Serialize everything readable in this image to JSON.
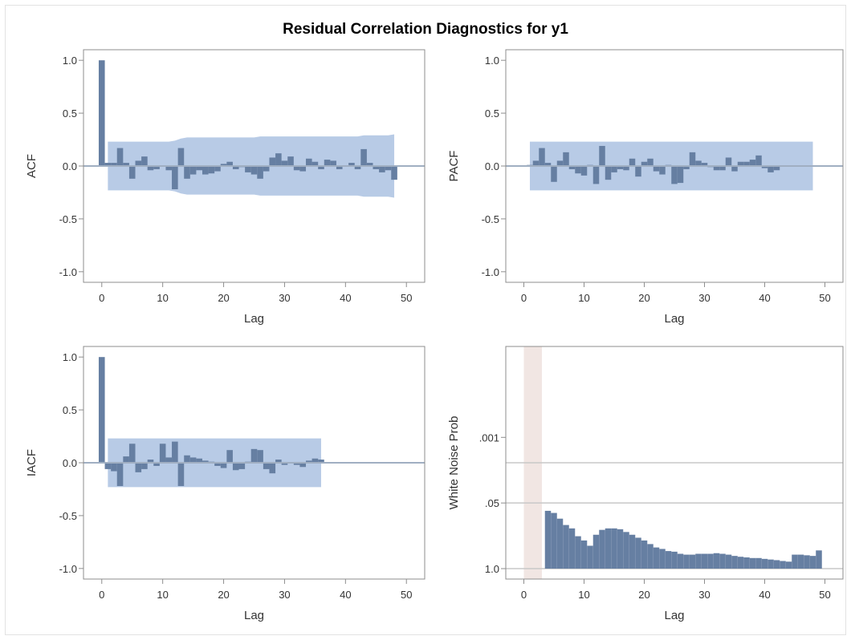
{
  "title": "Residual Correlation Diagnostics for y1",
  "colors": {
    "bar": "#667fa2",
    "band": "#b8cbe6",
    "axis": "#8e8e8e",
    "refline": "#a0afc2",
    "highlight": "#f1e6e3",
    "hline": "#c8c8c8"
  },
  "chart_data": [
    {
      "id": "acf",
      "type": "bar",
      "ylabel": "ACF",
      "xlabel": "Lag",
      "xlim": [
        -3,
        53
      ],
      "ylim": [
        -1.1,
        1.1
      ],
      "xticks": [
        "0",
        "10",
        "20",
        "30",
        "40",
        "50"
      ],
      "yticks": [
        "1.0",
        "0.5",
        "0.0",
        "-0.5",
        "-1.0"
      ],
      "lags": [
        0,
        1,
        2,
        3,
        4,
        5,
        6,
        7,
        8,
        9,
        10,
        11,
        12,
        13,
        14,
        15,
        16,
        17,
        18,
        19,
        20,
        21,
        22,
        23,
        24,
        25,
        26,
        27,
        28,
        29,
        30,
        31,
        32,
        33,
        34,
        35,
        36,
        37,
        38,
        39,
        40,
        41,
        42,
        43,
        44,
        45,
        46,
        47,
        48
      ],
      "values": [
        1.0,
        0.03,
        0.03,
        0.17,
        0.03,
        -0.12,
        0.05,
        0.09,
        -0.04,
        -0.03,
        0.0,
        -0.04,
        -0.22,
        0.17,
        -0.12,
        -0.08,
        -0.04,
        -0.08,
        -0.07,
        -0.05,
        0.02,
        0.04,
        -0.03,
        -0.01,
        -0.06,
        -0.08,
        -0.12,
        -0.05,
        0.08,
        0.12,
        0.05,
        0.09,
        -0.04,
        -0.05,
        0.07,
        0.04,
        -0.03,
        0.06,
        0.05,
        -0.03,
        0.0,
        0.03,
        -0.03,
        0.16,
        0.03,
        -0.03,
        -0.06,
        -0.04,
        -0.13
      ],
      "band_upper": [
        0.23,
        0.23,
        0.23,
        0.23,
        0.23,
        0.23,
        0.23,
        0.23,
        0.23,
        0.23,
        0.23,
        0.23,
        0.24,
        0.26,
        0.27,
        0.27,
        0.27,
        0.27,
        0.27,
        0.27,
        0.27,
        0.27,
        0.27,
        0.27,
        0.27,
        0.27,
        0.28,
        0.28,
        0.28,
        0.28,
        0.28,
        0.28,
        0.28,
        0.28,
        0.28,
        0.28,
        0.28,
        0.28,
        0.28,
        0.28,
        0.28,
        0.28,
        0.28,
        0.29,
        0.29,
        0.29,
        0.29,
        0.29,
        0.3
      ]
    },
    {
      "id": "pacf",
      "type": "bar",
      "ylabel": "PACF",
      "xlabel": "Lag",
      "xlim": [
        -3,
        53
      ],
      "ylim": [
        -1.1,
        1.1
      ],
      "xticks": [
        "0",
        "10",
        "20",
        "30",
        "40",
        "50"
      ],
      "yticks": [
        "1.0",
        "0.5",
        "0.0",
        "-0.5",
        "-1.0"
      ],
      "lags": [
        1,
        2,
        3,
        4,
        5,
        6,
        7,
        8,
        9,
        10,
        11,
        12,
        13,
        14,
        15,
        16,
        17,
        18,
        19,
        20,
        21,
        22,
        23,
        24,
        25,
        26,
        27,
        28,
        29,
        30,
        31,
        32,
        33,
        34,
        35,
        36,
        37,
        38,
        39,
        40,
        41,
        42,
        43,
        44,
        45,
        46,
        47,
        48
      ],
      "values": [
        0.01,
        0.05,
        0.17,
        0.03,
        -0.15,
        0.05,
        0.13,
        -0.03,
        -0.07,
        -0.09,
        0.01,
        -0.17,
        0.19,
        -0.13,
        -0.06,
        -0.03,
        -0.04,
        0.07,
        -0.1,
        0.04,
        0.07,
        -0.05,
        -0.08,
        0.01,
        -0.17,
        -0.16,
        -0.03,
        0.13,
        0.05,
        0.03,
        -0.01,
        -0.04,
        -0.04,
        0.08,
        -0.05,
        0.04,
        0.04,
        0.06,
        0.1,
        -0.02,
        -0.06,
        -0.04
      ],
      "band_upper": 0.23
    },
    {
      "id": "iacf",
      "type": "bar",
      "ylabel": "IACF",
      "xlabel": "Lag",
      "xlim": [
        -3,
        53
      ],
      "ylim": [
        -1.1,
        1.1
      ],
      "xticks": [
        "0",
        "10",
        "20",
        "30",
        "40",
        "50"
      ],
      "yticks": [
        "1.0",
        "0.5",
        "0.0",
        "-0.5",
        "-1.0"
      ],
      "lags": [
        0,
        1,
        2,
        3,
        4,
        5,
        6,
        7,
        8,
        9,
        10,
        11,
        12,
        13,
        14,
        15,
        16,
        17,
        18,
        19,
        20,
        21,
        22,
        23,
        24,
        25,
        26,
        27,
        28,
        29,
        30,
        31,
        32,
        33,
        34,
        35,
        36
      ],
      "values": [
        1.0,
        -0.06,
        -0.08,
        -0.22,
        0.06,
        0.18,
        -0.09,
        -0.06,
        0.03,
        -0.03,
        0.18,
        0.05,
        0.2,
        -0.22,
        0.07,
        0.05,
        0.04,
        0.02,
        0.01,
        -0.03,
        -0.05,
        0.12,
        -0.07,
        -0.06,
        0.01,
        0.13,
        0.12,
        -0.06,
        -0.1,
        0.03,
        -0.02,
        0.0,
        -0.02,
        -0.04,
        0.02,
        0.04,
        0.03
      ],
      "band_upper": 0.23
    },
    {
      "id": "white-noise",
      "type": "bar",
      "ylabel": "White Noise Prob",
      "xlabel": "Lag",
      "xlim": [
        -3,
        53
      ],
      "xticks": [
        "0",
        "10",
        "20",
        "30",
        "40",
        "50"
      ],
      "yticks": [
        ".001",
        ".05",
        "1.0"
      ],
      "ytick_fractions": [
        0.62,
        0.31,
        0.0
      ],
      "hlines_fractions": [
        0.5,
        0.31
      ],
      "highlight_lags": [
        0,
        3
      ],
      "lags": [
        4,
        5,
        6,
        7,
        8,
        9,
        10,
        11,
        12,
        13,
        14,
        15,
        16,
        17,
        18,
        19,
        20,
        21,
        22,
        23,
        24,
        25,
        26,
        27,
        28,
        29,
        30,
        31,
        32,
        33,
        34,
        35,
        36,
        37,
        38,
        39,
        40,
        41,
        42,
        43,
        44,
        45,
        46,
        47,
        48,
        49
      ],
      "bar_heights_fraction": [
        0.273,
        0.263,
        0.236,
        0.206,
        0.19,
        0.153,
        0.133,
        0.108,
        0.16,
        0.183,
        0.19,
        0.19,
        0.186,
        0.173,
        0.16,
        0.146,
        0.133,
        0.116,
        0.1,
        0.093,
        0.083,
        0.08,
        0.07,
        0.066,
        0.066,
        0.07,
        0.07,
        0.07,
        0.073,
        0.07,
        0.066,
        0.06,
        0.056,
        0.053,
        0.05,
        0.05,
        0.046,
        0.043,
        0.04,
        0.036,
        0.033,
        0.066,
        0.066,
        0.063,
        0.06,
        0.086
      ]
    }
  ]
}
